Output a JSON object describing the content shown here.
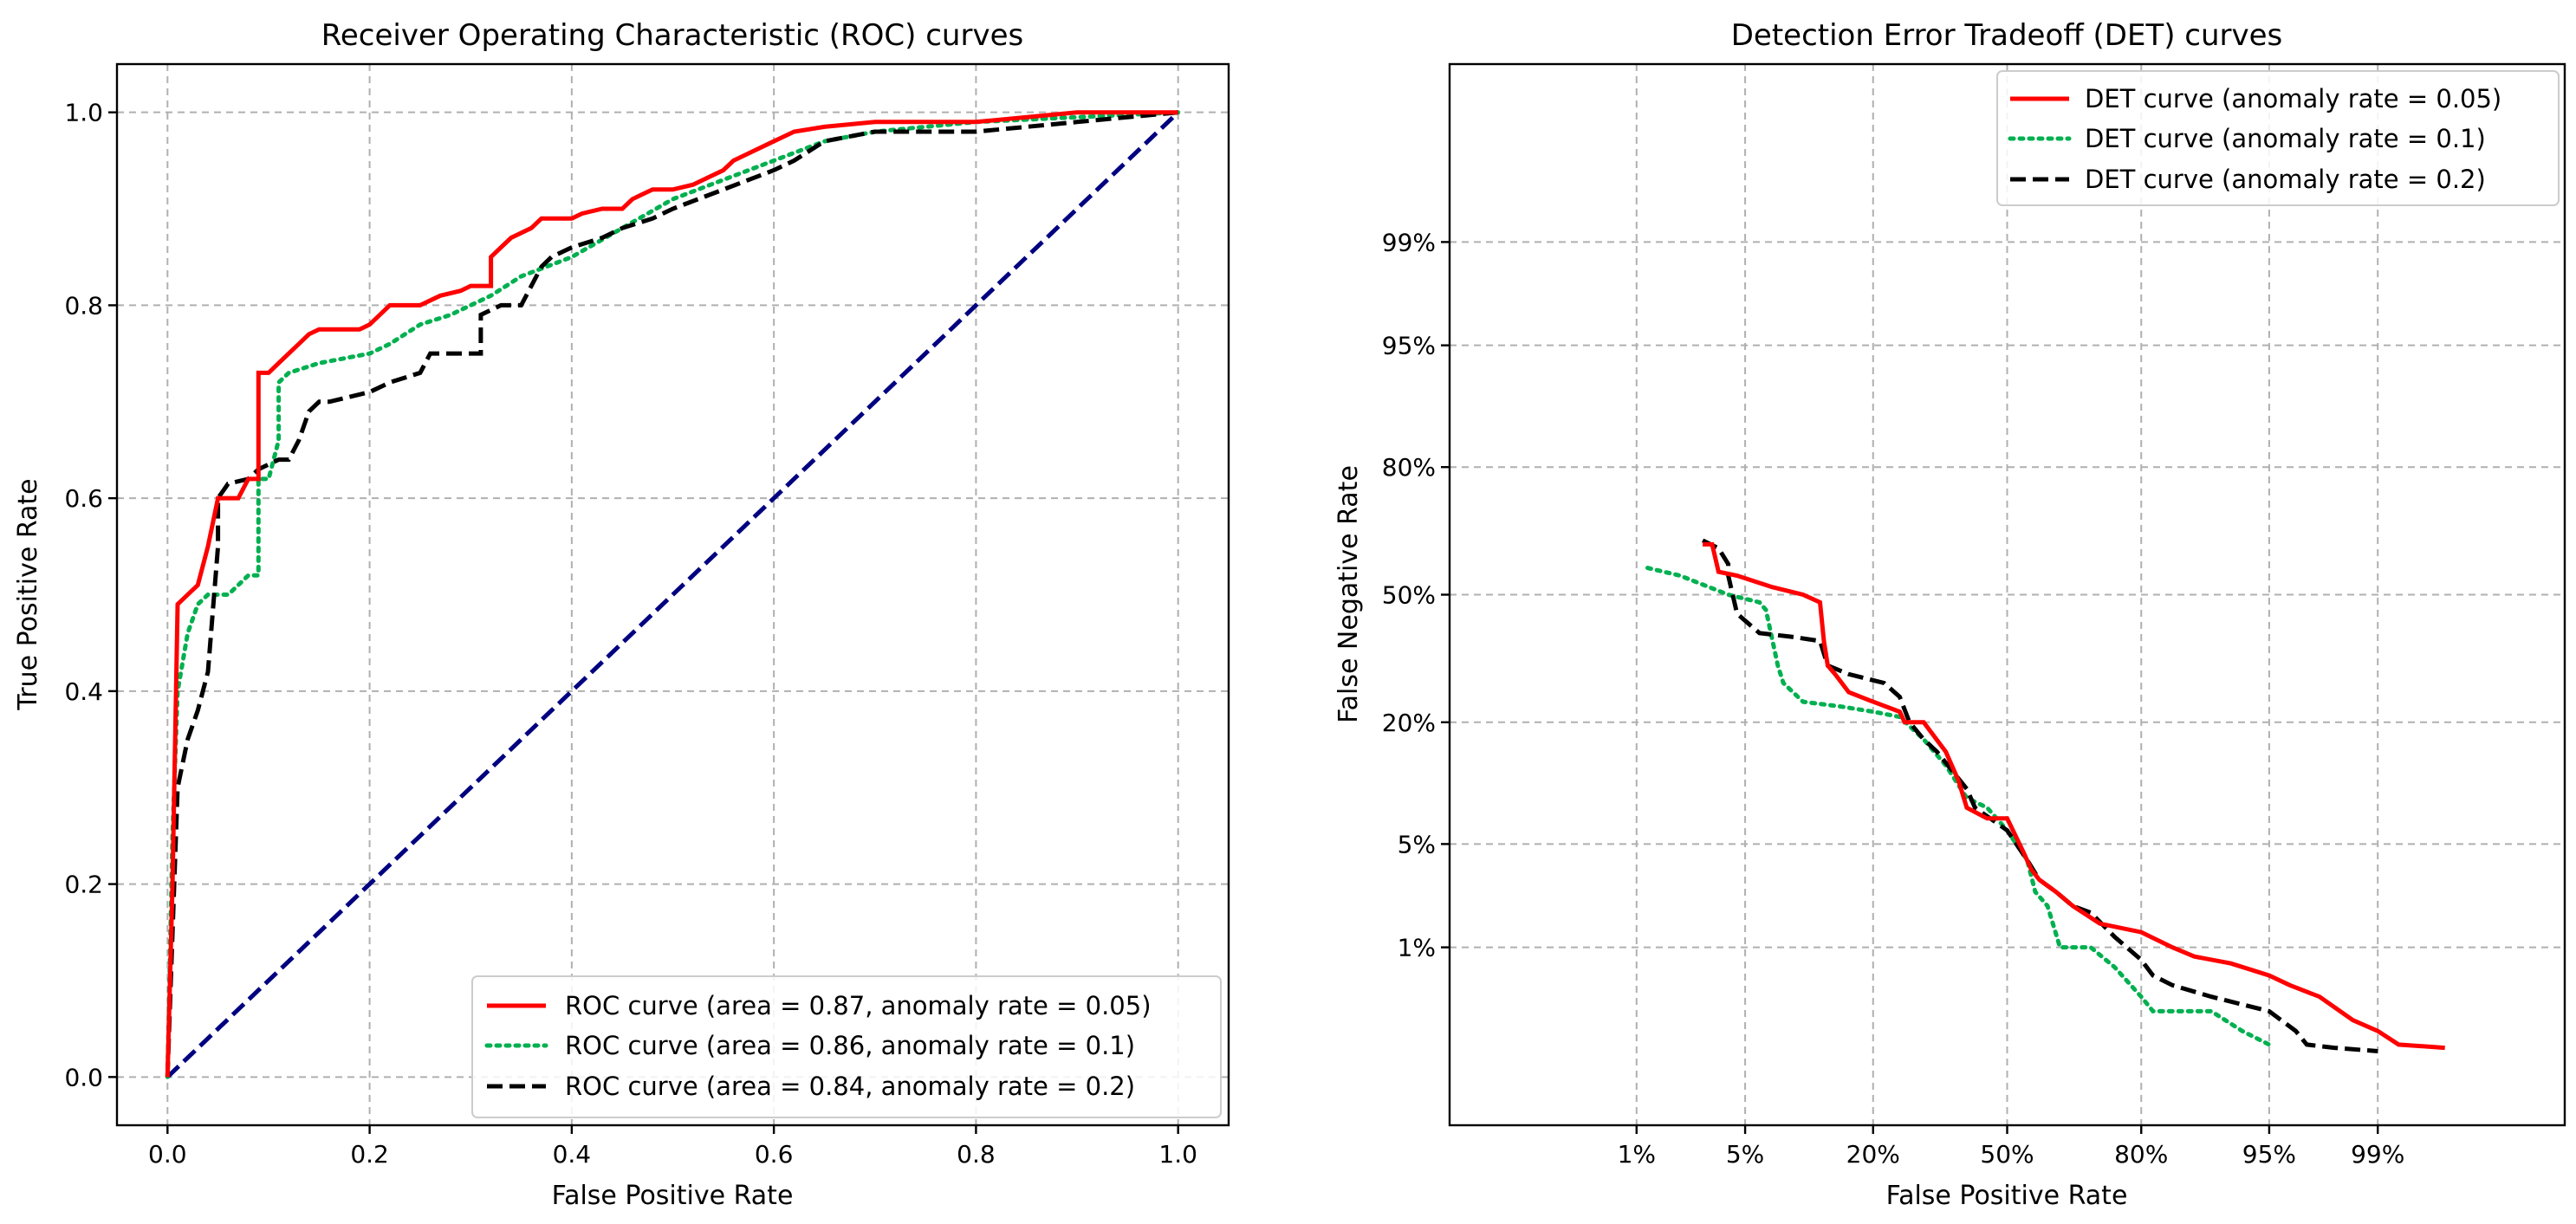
{
  "chart_data": [
    {
      "type": "line",
      "title": "Receiver Operating Characteristic (ROC) curves",
      "xlabel": "False Positive Rate",
      "ylabel": "True Positive Rate",
      "xlim": [
        -0.05,
        1.05
      ],
      "ylim": [
        -0.05,
        1.05
      ],
      "xticks": [
        0.0,
        0.2,
        0.4,
        0.6,
        0.8,
        1.0
      ],
      "xtick_labels": [
        "0.0",
        "0.2",
        "0.4",
        "0.6",
        "0.8",
        "1.0"
      ],
      "yticks": [
        0.0,
        0.2,
        0.4,
        0.6,
        0.8,
        1.0
      ],
      "ytick_labels": [
        "0.0",
        "0.2",
        "0.4",
        "0.6",
        "0.8",
        "1.0"
      ],
      "grid": true,
      "legend_position": "lower-right",
      "series": [
        {
          "name": "ROC curve (area = 0.87, anomaly rate = 0.05)",
          "color": "#ff0000",
          "style": "solid",
          "x": [
            0.0,
            0.005,
            0.01,
            0.02,
            0.03,
            0.04,
            0.05,
            0.06,
            0.07,
            0.08,
            0.09,
            0.09,
            0.1,
            0.11,
            0.12,
            0.13,
            0.14,
            0.15,
            0.16,
            0.19,
            0.2,
            0.21,
            0.22,
            0.24,
            0.25,
            0.27,
            0.29,
            0.3,
            0.32,
            0.32,
            0.33,
            0.34,
            0.36,
            0.37,
            0.38,
            0.4,
            0.41,
            0.43,
            0.45,
            0.46,
            0.47,
            0.48,
            0.5,
            0.52,
            0.53,
            0.55,
            0.56,
            0.58,
            0.6,
            0.62,
            0.65,
            0.7,
            0.8,
            0.9,
            1.0
          ],
          "y": [
            0.0,
            0.2,
            0.49,
            0.5,
            0.51,
            0.55,
            0.6,
            0.6,
            0.6,
            0.62,
            0.62,
            0.73,
            0.73,
            0.74,
            0.75,
            0.76,
            0.77,
            0.775,
            0.775,
            0.775,
            0.78,
            0.79,
            0.8,
            0.8,
            0.8,
            0.81,
            0.815,
            0.82,
            0.82,
            0.85,
            0.86,
            0.87,
            0.88,
            0.89,
            0.89,
            0.89,
            0.895,
            0.9,
            0.9,
            0.91,
            0.915,
            0.92,
            0.92,
            0.925,
            0.93,
            0.94,
            0.95,
            0.96,
            0.97,
            0.98,
            0.985,
            0.99,
            0.99,
            1.0,
            1.0
          ]
        },
        {
          "name": "ROC curve (area = 0.86, anomaly rate = 0.1)",
          "color": "#00b050",
          "style": "dotted",
          "x": [
            0.0,
            0.005,
            0.01,
            0.02,
            0.03,
            0.04,
            0.05,
            0.06,
            0.07,
            0.08,
            0.09,
            0.09,
            0.1,
            0.11,
            0.11,
            0.12,
            0.15,
            0.2,
            0.22,
            0.25,
            0.28,
            0.3,
            0.32,
            0.35,
            0.4,
            0.45,
            0.5,
            0.55,
            0.6,
            0.65,
            0.7,
            0.8,
            0.9,
            1.0
          ],
          "y": [
            0.0,
            0.25,
            0.4,
            0.46,
            0.49,
            0.5,
            0.5,
            0.5,
            0.51,
            0.52,
            0.52,
            0.62,
            0.62,
            0.66,
            0.72,
            0.73,
            0.74,
            0.75,
            0.76,
            0.78,
            0.79,
            0.8,
            0.81,
            0.83,
            0.85,
            0.88,
            0.91,
            0.93,
            0.95,
            0.97,
            0.98,
            0.99,
            0.995,
            1.0
          ]
        },
        {
          "name": "ROC curve (area = 0.84, anomaly rate = 0.2)",
          "color": "#000000",
          "style": "dashed",
          "x": [
            0.0,
            0.005,
            0.01,
            0.02,
            0.03,
            0.04,
            0.05,
            0.05,
            0.06,
            0.08,
            0.09,
            0.1,
            0.11,
            0.12,
            0.13,
            0.14,
            0.15,
            0.16,
            0.18,
            0.2,
            0.22,
            0.25,
            0.26,
            0.28,
            0.31,
            0.31,
            0.33,
            0.35,
            0.37,
            0.38,
            0.4,
            0.43,
            0.45,
            0.48,
            0.5,
            0.55,
            0.6,
            0.62,
            0.65,
            0.7,
            0.8,
            0.9,
            1.0
          ],
          "y": [
            0.0,
            0.15,
            0.3,
            0.35,
            0.38,
            0.42,
            0.55,
            0.6,
            0.615,
            0.62,
            0.63,
            0.635,
            0.64,
            0.64,
            0.66,
            0.69,
            0.7,
            0.7,
            0.705,
            0.71,
            0.72,
            0.73,
            0.75,
            0.75,
            0.75,
            0.79,
            0.8,
            0.8,
            0.84,
            0.85,
            0.86,
            0.87,
            0.88,
            0.89,
            0.9,
            0.92,
            0.94,
            0.95,
            0.97,
            0.98,
            0.98,
            0.99,
            1.0
          ]
        },
        {
          "name": "",
          "color": "#000080",
          "style": "dashed",
          "x": [
            0.0,
            1.0
          ],
          "y": [
            0.0,
            1.0
          ]
        }
      ]
    },
    {
      "type": "line",
      "title": "Detection Error Tradeoff (DET) curves",
      "xlabel": "False Positive Rate",
      "ylabel": "False Negative Rate",
      "scale": "normal-deviate",
      "xlim_z": [
        -3.5,
        3.5
      ],
      "ylim_z": [
        -3.5,
        3.5
      ],
      "xticks": [
        0.01,
        0.05,
        0.2,
        0.5,
        0.8,
        0.95,
        0.99
      ],
      "xtick_labels": [
        "1%",
        "5%",
        "20%",
        "50%",
        "80%",
        "95%",
        "99%"
      ],
      "yticks": [
        0.01,
        0.05,
        0.2,
        0.5,
        0.8,
        0.95,
        0.99
      ],
      "ytick_labels": [
        "1%",
        "5%",
        "20%",
        "50%",
        "80%",
        "95%",
        "99%"
      ],
      "grid": true,
      "legend_position": "top-right",
      "series": [
        {
          "name": "DET curve (anomaly rate = 0.05)",
          "color": "#ff0000",
          "style": "solid",
          "x": [
            0.028,
            0.032,
            0.035,
            0.045,
            0.07,
            0.1,
            0.12,
            0.125,
            0.13,
            0.14,
            0.16,
            0.2,
            0.25,
            0.26,
            0.3,
            0.35,
            0.38,
            0.4,
            0.45,
            0.5,
            0.54,
            0.56,
            0.58,
            0.62,
            0.66,
            0.72,
            0.8,
            0.85,
            0.88,
            0.92,
            0.95,
            0.962,
            0.975,
            0.985,
            0.99,
            0.993,
            0.997
          ],
          "y": [
            0.63,
            0.63,
            0.56,
            0.55,
            0.52,
            0.5,
            0.48,
            0.38,
            0.32,
            0.3,
            0.26,
            0.24,
            0.22,
            0.2,
            0.2,
            0.15,
            0.11,
            0.08,
            0.07,
            0.07,
            0.045,
            0.035,
            0.03,
            0.025,
            0.02,
            0.015,
            0.013,
            0.01,
            0.0085,
            0.0075,
            0.006,
            0.005,
            0.004,
            0.0025,
            0.002,
            0.0015,
            0.0014
          ]
        },
        {
          "name": "DET curve (anomaly rate = 0.1)",
          "color": "#00b050",
          "style": "dotted",
          "x": [
            0.012,
            0.02,
            0.04,
            0.06,
            0.065,
            0.075,
            0.08,
            0.1,
            0.15,
            0.2,
            0.25,
            0.3,
            0.35,
            0.4,
            0.45,
            0.5,
            0.55,
            0.57,
            0.6,
            0.63,
            0.7,
            0.75,
            0.8,
            0.82,
            0.9,
            0.93,
            0.95
          ],
          "y": [
            0.57,
            0.55,
            0.5,
            0.48,
            0.46,
            0.32,
            0.28,
            0.24,
            0.23,
            0.22,
            0.21,
            0.17,
            0.13,
            0.09,
            0.08,
            0.06,
            0.04,
            0.025,
            0.02,
            0.01,
            0.01,
            0.007,
            0.004,
            0.003,
            0.003,
            0.002,
            0.0015
          ]
        },
        {
          "name": "DET curve (anomaly rate = 0.2)",
          "color": "#000000",
          "style": "dashed",
          "x": [
            0.028,
            0.035,
            0.04,
            0.04,
            0.045,
            0.06,
            0.09,
            0.12,
            0.13,
            0.16,
            0.22,
            0.25,
            0.27,
            0.3,
            0.33,
            0.4,
            0.42,
            0.5,
            0.55,
            0.58,
            0.62,
            0.66,
            0.7,
            0.75,
            0.8,
            0.82,
            0.85,
            0.9,
            0.95,
            0.965,
            0.97,
            0.98,
            0.99
          ],
          "y": [
            0.64,
            0.62,
            0.58,
            0.55,
            0.45,
            0.4,
            0.39,
            0.38,
            0.32,
            0.3,
            0.28,
            0.25,
            0.2,
            0.17,
            0.15,
            0.1,
            0.08,
            0.06,
            0.04,
            0.03,
            0.025,
            0.02,
            0.018,
            0.012,
            0.008,
            0.006,
            0.005,
            0.004,
            0.003,
            0.002,
            0.0015,
            0.0014,
            0.0013
          ]
        }
      ]
    }
  ]
}
